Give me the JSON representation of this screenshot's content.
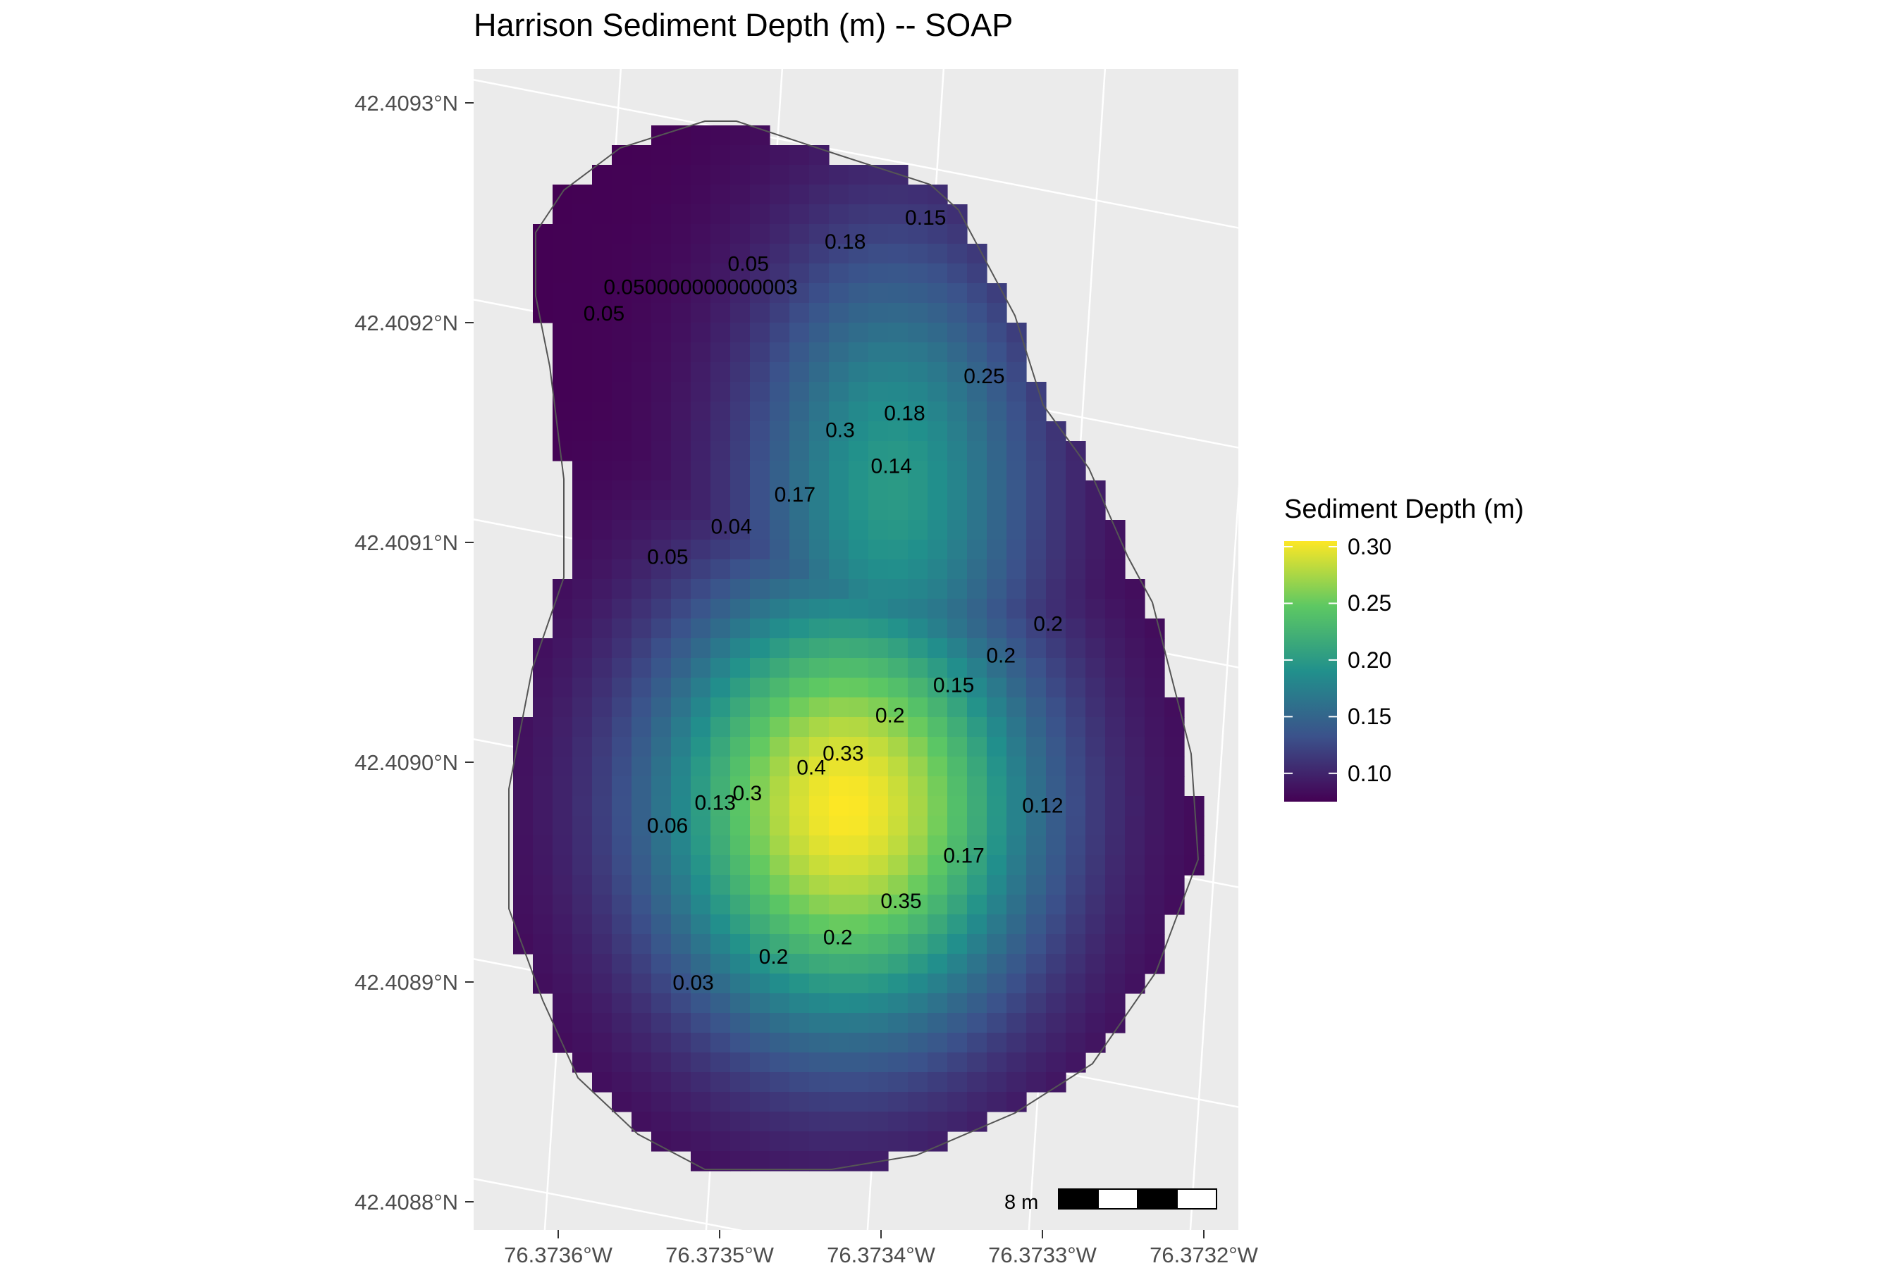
{
  "chart_data": {
    "type": "heatmap",
    "title": "Harrison Sediment Depth (m) -- SOAP",
    "legend": {
      "title": "Sediment Depth (m)",
      "ticks": [
        "0.30",
        "0.25",
        "0.20",
        "0.15",
        "0.10"
      ],
      "range": [
        0.075,
        0.305
      ],
      "colormap": [
        "#440154",
        "#3b528b",
        "#21908c",
        "#5dc863",
        "#fde725"
      ]
    },
    "x_ticks": [
      "76.3736°W",
      "76.3735°W",
      "76.3734°W",
      "76.3733°W",
      "76.3732°W"
    ],
    "y_ticks": [
      "42.4093°N",
      "42.4092°N",
      "42.4091°N",
      "42.4090°N",
      "42.4089°N",
      "42.4088°N"
    ],
    "scale_bar_label": "8 m",
    "grid": true,
    "depth_field": {
      "lon_range": [
        -76.37365,
        -76.37321
      ],
      "lat_range": [
        42.40881,
        42.4093
      ],
      "peaks": [
        {
          "lon": -76.37345,
          "lat": 42.40896,
          "depth": 0.305
        },
        {
          "lon": -76.37341,
          "lat": 42.4091,
          "depth": 0.2
        }
      ],
      "base_depth": 0.075
    },
    "sample_points": [
      {
        "label": "0.050000000000003",
        "lon": -76.37352,
        "lat": 42.409203
      },
      {
        "label": "0.05",
        "lon": -76.37358,
        "lat": 42.409198
      },
      {
        "label": "0.05",
        "lon": -76.37349,
        "lat": 42.40921
      },
      {
        "label": "0.18",
        "lon": -76.37343,
        "lat": 42.409213
      },
      {
        "label": "0.15",
        "lon": -76.37338,
        "lat": 42.409218
      },
      {
        "label": "0.25",
        "lon": -76.37335,
        "lat": 42.409142
      },
      {
        "label": "0.18",
        "lon": -76.3734,
        "lat": 42.409131
      },
      {
        "label": "0.3",
        "lon": -76.37344,
        "lat": 42.409128
      },
      {
        "label": "0.14",
        "lon": -76.37341,
        "lat": 42.409108
      },
      {
        "label": "0.17",
        "lon": -76.37347,
        "lat": 42.409102
      },
      {
        "label": "0.04",
        "lon": -76.37351,
        "lat": 42.409092
      },
      {
        "label": "0.05",
        "lon": -76.37355,
        "lat": 42.409083
      },
      {
        "label": "0.2",
        "lon": -76.37332,
        "lat": 42.409025
      },
      {
        "label": "0.2",
        "lon": -76.37335,
        "lat": 42.409014
      },
      {
        "label": "0.15",
        "lon": -76.37338,
        "lat": 42.409004
      },
      {
        "label": "0.2",
        "lon": -76.37342,
        "lat": 42.408995
      },
      {
        "label": "0.33",
        "lon": -76.37345,
        "lat": 42.408981
      },
      {
        "label": "0.4",
        "lon": -76.37347,
        "lat": 42.408977
      },
      {
        "label": "0.3",
        "lon": -76.37351,
        "lat": 42.40897
      },
      {
        "label": "0.13",
        "lon": -76.37353,
        "lat": 42.408968
      },
      {
        "label": "0.06",
        "lon": -76.37356,
        "lat": 42.408961
      },
      {
        "label": "0.12",
        "lon": -76.37333,
        "lat": 42.408943
      },
      {
        "label": "0.17",
        "lon": -76.37338,
        "lat": 42.408926
      },
      {
        "label": "0.35",
        "lon": -76.37342,
        "lat": 42.40891
      },
      {
        "label": "0.2",
        "lon": -76.37346,
        "lat": 42.408898
      },
      {
        "label": "0.2",
        "lon": -76.3735,
        "lat": 42.408894
      },
      {
        "label": "0.03",
        "lon": -76.37355,
        "lat": 42.408888
      }
    ]
  }
}
